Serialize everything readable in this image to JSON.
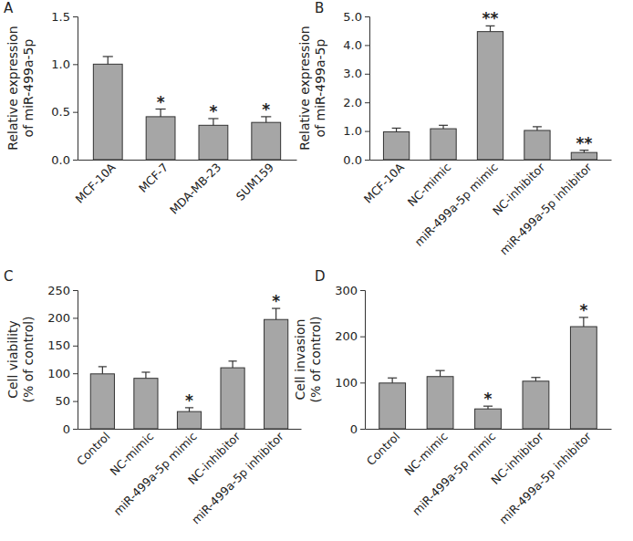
{
  "chart_data": [
    {
      "type": "bar",
      "title": "A",
      "color": "#a6a6a6",
      "categories": [
        "MCF-10A",
        "MCF-7",
        "MDA-MB-23",
        "SUM159"
      ],
      "values": [
        1.0,
        0.45,
        0.36,
        0.39
      ],
      "errors": [
        0.08,
        0.08,
        0.07,
        0.06
      ],
      "annotations": [
        null,
        "*",
        "*",
        "*"
      ],
      "ylabel": [
        "Relative expression",
        "of miR-499a-5p"
      ],
      "ylim": [
        0,
        1.5
      ],
      "yticks": [
        {
          "value": 0,
          "label": "0.0"
        },
        0.5,
        {
          "value": 1,
          "label": "1.0"
        },
        1.5
      ]
    },
    {
      "type": "bar",
      "title": "B",
      "color": "#a6a6a6",
      "categories": [
        "MCF-10A",
        "NC-mimic",
        "miR-499a-5p mimic",
        "NC-inhibitor",
        "miR-499a-5p inhibitor"
      ],
      "values": [
        0.97,
        1.08,
        4.47,
        1.02,
        0.25
      ],
      "errors": [
        0.13,
        0.12,
        0.2,
        0.13,
        0.08
      ],
      "annotations": [
        null,
        null,
        "**",
        null,
        "**"
      ],
      "ylabel": [
        "Relative expression",
        "of miR-499a-5p"
      ],
      "ylim": [
        0,
        5
      ],
      "yticks": [
        {
          "value": 0,
          "label": "0.0"
        },
        {
          "value": 1,
          "label": "1.0"
        },
        {
          "value": 2,
          "label": "2.0"
        },
        {
          "value": 3,
          "label": "3.0"
        },
        {
          "value": 4,
          "label": "4.0"
        },
        {
          "value": 5,
          "label": "5.0"
        }
      ]
    },
    {
      "type": "bar",
      "title": "C",
      "color": "#a6a6a6",
      "categories": [
        "Control",
        "NC-mimic",
        "miR-499a-5p mimic",
        "NC-inhibitor",
        "miR-499a-5p inhibitor"
      ],
      "values": [
        99,
        91,
        31,
        110,
        197
      ],
      "errors": [
        13,
        11,
        7,
        12,
        20
      ],
      "annotations": [
        null,
        null,
        "*",
        null,
        "*"
      ],
      "ylabel": [
        "Cell viability",
        "(% of control)"
      ],
      "ylim": [
        0,
        250
      ],
      "yticks": [
        0,
        50,
        100,
        150,
        200,
        250
      ]
    },
    {
      "type": "bar",
      "title": "D",
      "color": "#a6a6a6",
      "categories": [
        "Control",
        "NC-mimic",
        "miR-499a-5p mimic",
        "NC-inhibitor",
        "miR-499a-5p inhibitor"
      ],
      "values": [
        99,
        113,
        43,
        103,
        221
      ],
      "errors": [
        11,
        13,
        6,
        8,
        20
      ],
      "annotations": [
        null,
        null,
        "*",
        null,
        "*"
      ],
      "ylabel": [
        "Cell invasion",
        "(% of control)"
      ],
      "ylim": [
        0,
        300
      ],
      "yticks": [
        0,
        100,
        200,
        300
      ]
    }
  ]
}
